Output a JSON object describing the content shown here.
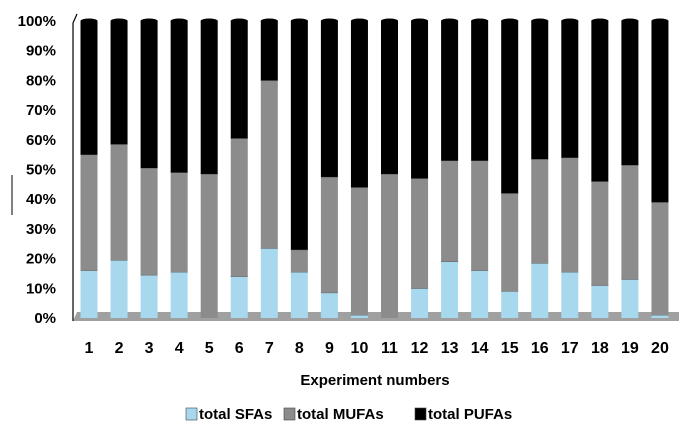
{
  "chart_data": {
    "type": "bar",
    "stacked": "percent",
    "xlabel": "Experiment numbers",
    "ylabel": "",
    "ylim": [
      0,
      100
    ],
    "y_ticks": [
      "0%",
      "10%",
      "20%",
      "30%",
      "40%",
      "50%",
      "60%",
      "70%",
      "80%",
      "90%",
      "100%"
    ],
    "categories": [
      "1",
      "2",
      "3",
      "4",
      "5",
      "6",
      "7",
      "8",
      "9",
      "10",
      "11",
      "12",
      "13",
      "14",
      "15",
      "16",
      "17",
      "18",
      "19",
      "20"
    ],
    "series": [
      {
        "name": "total SFAs",
        "color": "#a8d8ee",
        "values": [
          16,
          19.5,
          14.5,
          15.5,
          0,
          14,
          23.5,
          15.5,
          8.5,
          1,
          0,
          10,
          19,
          16,
          9,
          18.5,
          15.5,
          11,
          13,
          1
        ]
      },
      {
        "name": "total MUFAs",
        "color": "#8c8c8c",
        "values": [
          39,
          39,
          36,
          33.5,
          48.5,
          46.5,
          56.5,
          7.5,
          39,
          43,
          48.5,
          37,
          34,
          37,
          33,
          35,
          38.5,
          35,
          38.5,
          38
        ]
      },
      {
        "name": "total PUFAs",
        "color": "#000000",
        "values": [
          45,
          41.5,
          49.5,
          51,
          51.5,
          39.5,
          20,
          77,
          52.5,
          56,
          51.5,
          53,
          47,
          47,
          58,
          46.5,
          46,
          54,
          48.5,
          61
        ]
      }
    ],
    "grid": false,
    "legend_position": "bottom",
    "floor_color": "#a0a0a0"
  }
}
